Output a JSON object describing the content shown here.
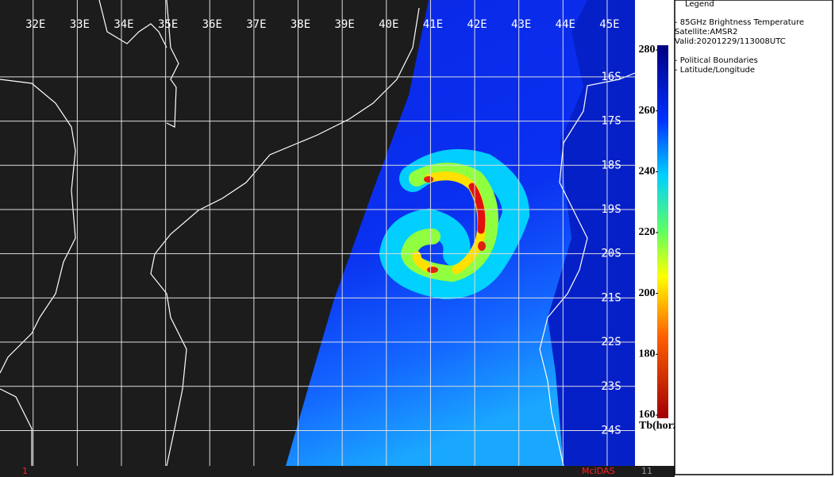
{
  "map": {
    "xticks": [
      {
        "value": 32,
        "label": "32E"
      },
      {
        "value": 33,
        "label": "33E"
      },
      {
        "value": 34,
        "label": "34E"
      },
      {
        "value": 35,
        "label": "35E"
      },
      {
        "value": 36,
        "label": "36E"
      },
      {
        "value": 37,
        "label": "37E"
      },
      {
        "value": 38,
        "label": "38E"
      },
      {
        "value": 39,
        "label": "39E"
      },
      {
        "value": 40,
        "label": "40E"
      },
      {
        "value": 41,
        "label": "41E"
      },
      {
        "value": 42,
        "label": "42E"
      },
      {
        "value": 43,
        "label": "43E"
      },
      {
        "value": 44,
        "label": "44E"
      },
      {
        "value": 45,
        "label": "45E"
      }
    ],
    "yticks": [
      {
        "value": -16,
        "label": "16S"
      },
      {
        "value": -17,
        "label": "17S"
      },
      {
        "value": -18,
        "label": "18S"
      },
      {
        "value": -19,
        "label": "19S"
      },
      {
        "value": -20,
        "label": "20S"
      },
      {
        "value": -21,
        "label": "21S"
      },
      {
        "value": -22,
        "label": "22S"
      },
      {
        "value": -23,
        "label": "23S"
      },
      {
        "value": -24,
        "label": "24S"
      }
    ],
    "xlim": [
      31.25,
      45.63
    ],
    "ylim": [
      -14.26,
      -24.8
    ]
  },
  "colorbar": {
    "lim": [
      160,
      280
    ],
    "ticks": [
      280,
      260,
      240,
      220,
      200,
      180,
      160
    ],
    "label": "Tb(horz)"
  },
  "legend": {
    "title": "Legend",
    "items": [
      "-  85GHz Brightness Temperature",
      "Satellite:AMSR2",
      "Valid:20201229/113008UTC",
      "-  Political Boundaries",
      "-  Latitude/Longitude"
    ]
  },
  "footer": {
    "left": "1",
    "center": "McIDAS",
    "right": "11"
  }
}
